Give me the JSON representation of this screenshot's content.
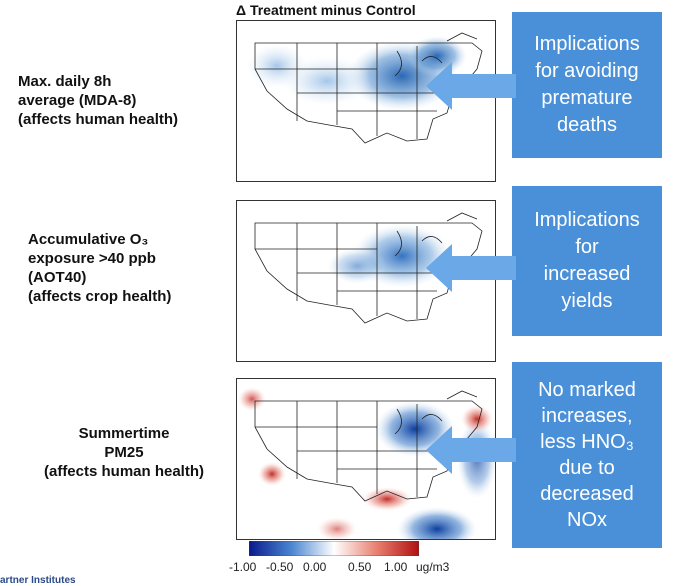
{
  "title": "Δ Treatment minus Control",
  "rows": [
    {
      "label_lines": [
        "Max. daily 8h",
        "average (MDA-8)",
        "(affects human health)"
      ],
      "callout_lines": [
        "Implications",
        "for avoiding",
        "premature",
        "deaths"
      ]
    },
    {
      "label_lines": [
        "Accumulative O₃",
        "exposure >40 ppb",
        "(AOT40)",
        "(affects crop health)"
      ],
      "callout_lines": [
        "Implications",
        "for",
        "increased",
        "yields"
      ]
    },
    {
      "label_lines": [
        "Summertime",
        "PM25",
        "(affects human health)"
      ],
      "callout_lines": [
        "No marked",
        "increases,",
        "less HNO₃",
        "due to",
        "decreased",
        "NOx"
      ]
    }
  ],
  "colorbar": {
    "ticks": [
      "-1.00",
      "-0.50",
      "0.00",
      "0.50",
      "1.00"
    ],
    "unit": "ug/m3",
    "colors": {
      "low": "#0a1a8c",
      "mid": "#ffffff",
      "high": "#b01010"
    }
  },
  "footer": {
    "text": "artner Institutes"
  },
  "colors": {
    "callout": "#4a90d9",
    "arrow": "#6aa8e8"
  }
}
